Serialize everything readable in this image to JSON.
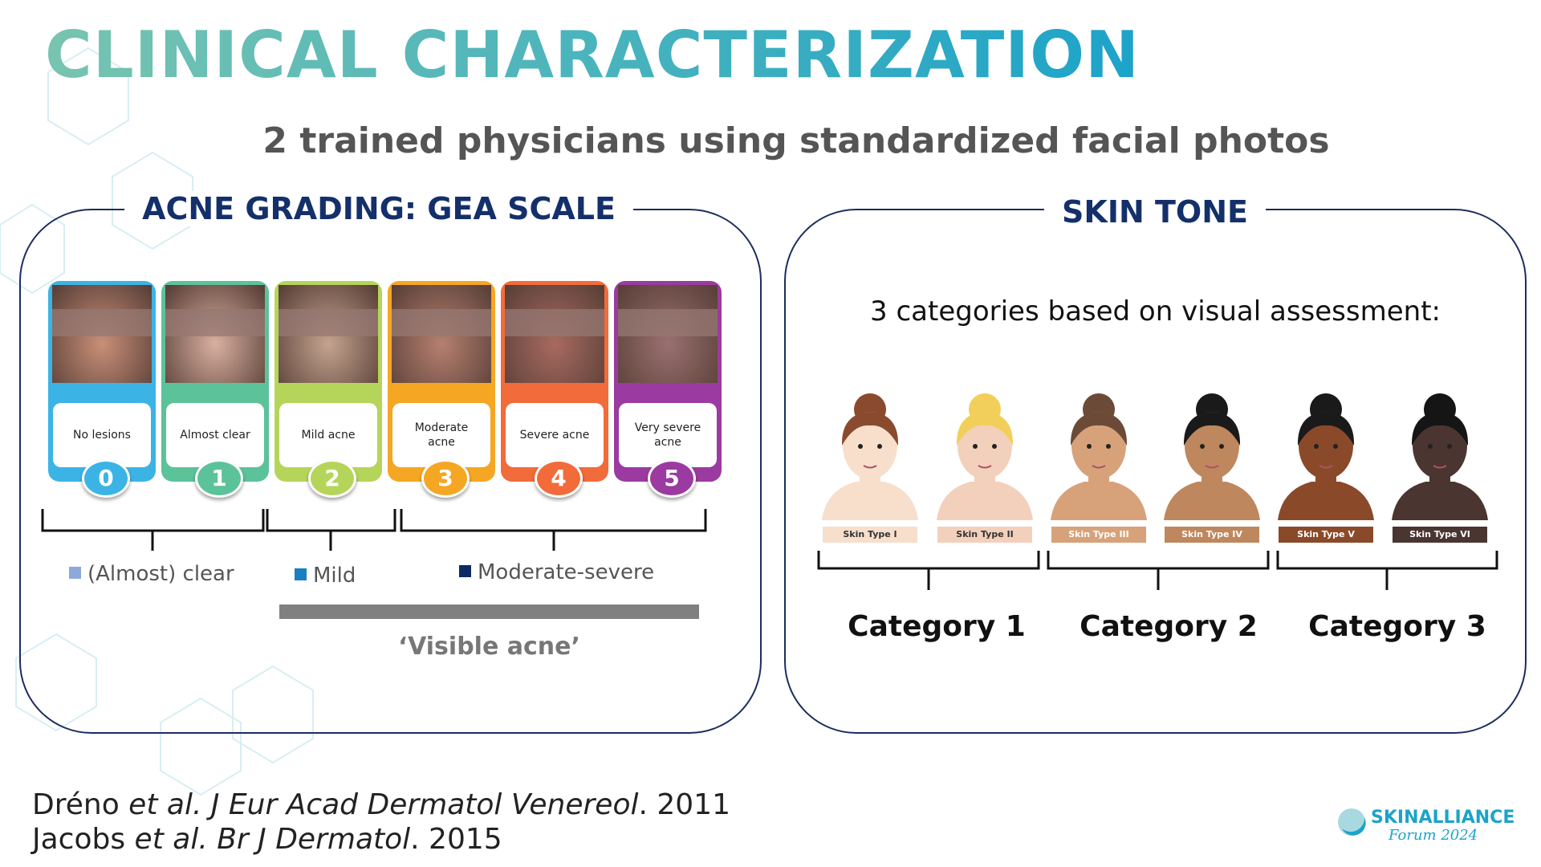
{
  "header": {
    "title": "CLINICAL CHARACTERIZATION",
    "subtitle": "2 trained physicians using standardized facial photos"
  },
  "acne_panel": {
    "title": "ACNE GRADING: GEA SCALE",
    "grades": [
      {
        "label": "No lesions",
        "grade": "0"
      },
      {
        "label": "Almost clear",
        "grade": "1"
      },
      {
        "label": "Mild acne",
        "grade": "2"
      },
      {
        "label": "Moderate acne",
        "grade": "3"
      },
      {
        "label": "Severe acne",
        "grade": "4"
      },
      {
        "label": "Very severe acne",
        "grade": "5"
      }
    ],
    "groups": [
      "(Almost) clear",
      "Mild",
      "Moderate-severe"
    ],
    "bar_label": "‘Visible acne’"
  },
  "skin_panel": {
    "title": "SKIN TONE",
    "description": "3 categories based on visual assessment:",
    "types": [
      "Skin Type I",
      "Skin Type II",
      "Skin Type III",
      "Skin Type IV",
      "Skin Type V",
      "Skin Type VI"
    ],
    "categories": [
      "Category 1",
      "Category 2",
      "Category 3"
    ]
  },
  "references": [
    [
      "Dréno ",
      "et al.",
      " J Eur Acad Dermatol Venereol",
      ". 2011"
    ],
    [
      "Jacobs ",
      "et al.",
      " Br J Dermatol",
      ". 2015"
    ]
  ],
  "logo": {
    "name": "SKINALLIANCE",
    "subtitle": "Forum 2024"
  }
}
